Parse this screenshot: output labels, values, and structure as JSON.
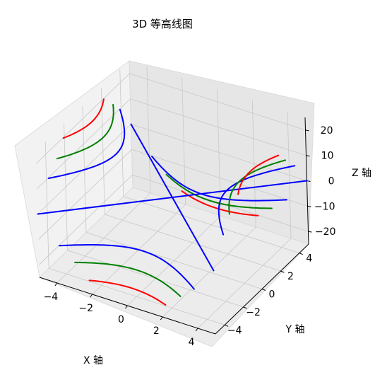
{
  "chart_data": {
    "type": "line",
    "subtype": "3d-contour",
    "title": "3D 等高线图",
    "xlabel": "X 轴",
    "ylabel": "Y 轴",
    "zlabel": "Z 轴",
    "xlim": [
      -5,
      5
    ],
    "ylim": [
      -5,
      5
    ],
    "zlim": [
      -25,
      25
    ],
    "x_ticks": [
      "−4",
      "−2",
      "0",
      "2",
      "4"
    ],
    "y_ticks": [
      "−4",
      "−2",
      "0",
      "2",
      "4"
    ],
    "z_ticks": [
      "20",
      "10",
      "0",
      "−10",
      "−20"
    ],
    "grid": true,
    "surface": "z = x^2 - y^2",
    "series": [
      {
        "level": -20,
        "color": "#ff0000"
      },
      {
        "level": -15,
        "color": "#008000"
      },
      {
        "level": -10,
        "color": "#0000ff"
      },
      {
        "level": 0,
        "color": "#0000ff"
      },
      {
        "level": 10,
        "color": "#0000ff"
      },
      {
        "level": 15,
        "color": "#008000"
      },
      {
        "level": 20,
        "color": "#ff0000"
      }
    ]
  }
}
